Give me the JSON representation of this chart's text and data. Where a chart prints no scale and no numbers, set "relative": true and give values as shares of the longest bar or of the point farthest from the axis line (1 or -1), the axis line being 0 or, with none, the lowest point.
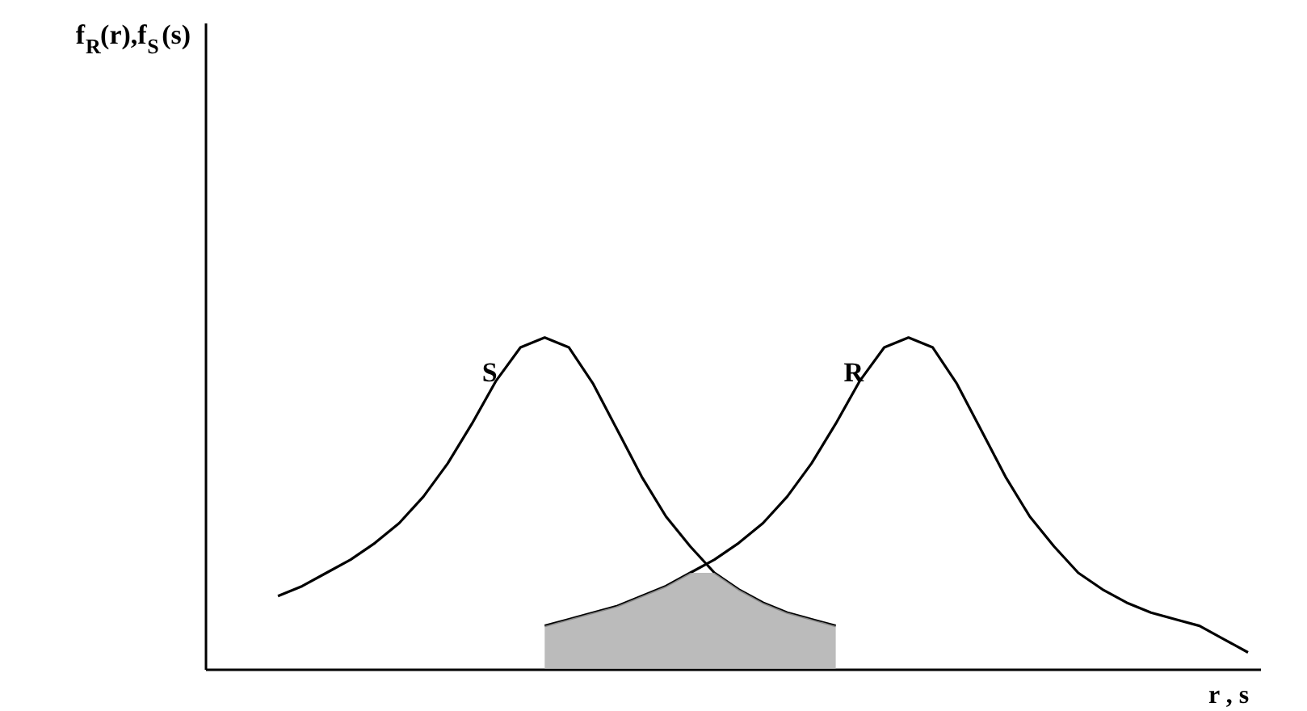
{
  "chart_data": {
    "type": "line",
    "relative": true,
    "xlabel": "r , s",
    "annotations": [
      "f$_{R}$(r),f$_{S}$(s)"
    ],
    "categories": [
      null,
      null,
      null,
      null,
      null,
      null,
      null,
      null,
      null,
      null,
      null,
      null,
      null,
      null,
      null,
      null,
      null,
      null,
      null,
      null,
      null,
      null,
      null,
      null,
      null,
      null,
      null,
      null,
      null,
      null,
      null,
      null,
      null,
      null,
      null,
      null,
      null,
      null,
      null,
      null,
      null
    ],
    "legend": false,
    "marker": "none",
    "line_style": "solid",
    "series": [
      {
        "name": "S",
        "color": "#000000",
        "values": [
          0.22,
          0.25,
          0.29,
          0.33,
          0.38,
          0.44,
          0.52,
          0.62,
          0.74,
          0.87,
          0.97,
          1.0,
          0.97,
          0.86,
          0.72,
          0.58,
          0.46,
          0.37,
          0.29,
          0.24,
          0.2,
          0.17,
          0.15,
          0.13,
          null,
          null,
          null,
          null,
          null,
          null,
          null,
          null,
          null,
          null,
          null,
          null,
          null,
          null,
          null,
          null,
          null
        ]
      },
      {
        "name": "R",
        "color": "#000000",
        "values": [
          null,
          null,
          null,
          null,
          null,
          null,
          null,
          null,
          null,
          null,
          null,
          0.13,
          0.15,
          0.17,
          0.19,
          0.22,
          0.25,
          0.29,
          0.33,
          0.38,
          0.44,
          0.52,
          0.62,
          0.74,
          0.87,
          0.97,
          1.0,
          0.97,
          0.86,
          0.72,
          0.58,
          0.46,
          0.37,
          0.29,
          0.24,
          0.2,
          0.17,
          0.15,
          0.13,
          0.09,
          0.05
        ]
      },
      {
        "type": "area",
        "color": "#aaaaaa",
        "values": [
          null,
          null,
          null,
          null,
          null,
          null,
          null,
          null,
          null,
          null,
          null,
          0.13,
          0.15,
          0.17,
          0.19,
          0.22,
          0.25,
          0.29,
          0.29,
          0.24,
          0.2,
          0.17,
          0.15,
          0.13,
          null,
          null,
          null,
          null,
          null,
          null,
          null,
          null,
          null,
          null,
          null,
          null,
          null,
          null,
          null,
          null,
          null
        ]
      }
    ]
  }
}
